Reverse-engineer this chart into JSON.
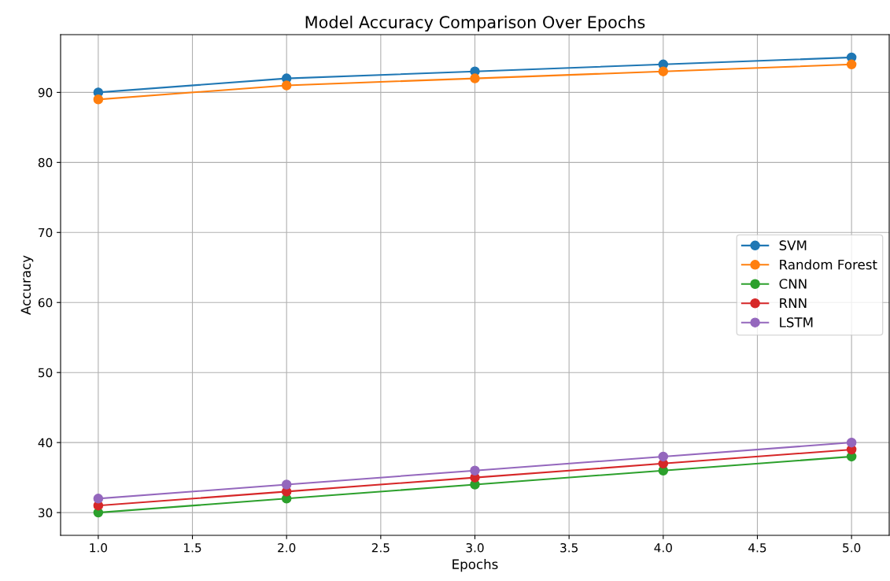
{
  "chart_data": {
    "type": "line",
    "title": "Model Accuracy Comparison Over Epochs",
    "xlabel": "Epochs",
    "ylabel": "Accuracy",
    "x": [
      1,
      2,
      3,
      4,
      5
    ],
    "series": [
      {
        "name": "SVM",
        "color": "#1f77b4",
        "values": [
          90,
          92,
          93,
          94,
          95
        ]
      },
      {
        "name": "Random Forest",
        "color": "#ff7f0e",
        "values": [
          89,
          91,
          92,
          93,
          94
        ]
      },
      {
        "name": "CNN",
        "color": "#2ca02c",
        "values": [
          30,
          32,
          34,
          36,
          38
        ]
      },
      {
        "name": "RNN",
        "color": "#d62728",
        "values": [
          31,
          33,
          35,
          37,
          39
        ]
      },
      {
        "name": "LSTM",
        "color": "#9467bd",
        "values": [
          32,
          34,
          36,
          38,
          40
        ]
      }
    ],
    "xlim": [
      0.8,
      5.2
    ],
    "ylim": [
      26.75,
      98.25
    ],
    "xticks": [
      {
        "value": 1,
        "label": "1.0"
      },
      {
        "value": 1.5,
        "label": "1.5"
      },
      {
        "value": 2,
        "label": "2.0"
      },
      {
        "value": 2.5,
        "label": "2.5"
      },
      {
        "value": 3,
        "label": "3.0"
      },
      {
        "value": 3.5,
        "label": "3.5"
      },
      {
        "value": 4,
        "label": "4.0"
      },
      {
        "value": 4.5,
        "label": "4.5"
      },
      {
        "value": 5,
        "label": "5.0"
      }
    ],
    "yticks": [
      30,
      40,
      50,
      60,
      70,
      80,
      90
    ],
    "grid": true,
    "legend": "center right",
    "marker": "circle",
    "line_style": "solid"
  }
}
